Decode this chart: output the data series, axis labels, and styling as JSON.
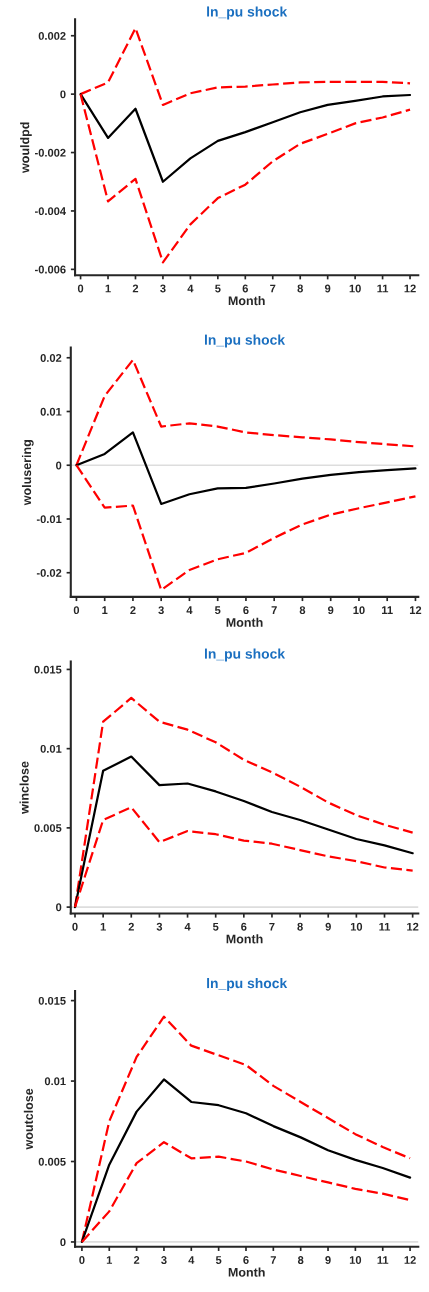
{
  "chart_data": [
    {
      "type": "line",
      "title": "ln_pu shock",
      "xlabel": "Month",
      "ylabel": "wouldpd",
      "x": [
        0,
        1,
        2,
        3,
        4,
        5,
        6,
        7,
        8,
        9,
        10,
        11,
        12
      ],
      "series": [
        {
          "color": "#ff0000",
          "line_style": "dashed",
          "values": [
            0,
            0.0004,
            0.00226,
            -0.00037,
            3e-05,
            0.00023,
            0.00026,
            0.00033,
            0.0004,
            0.00042,
            0.00042,
            0.00042,
            0.00037
          ]
        },
        {
          "color": "#000000",
          "line_style": "solid",
          "values": [
            0,
            -0.0015,
            -0.0005,
            -0.003,
            -0.0022,
            -0.0016,
            -0.0013,
            -0.00096,
            -0.00062,
            -0.00037,
            -0.00023,
            -8e-05,
            -3e-05
          ]
        },
        {
          "color": "#ff0000",
          "line_style": "dashed",
          "values": [
            0,
            -0.00367,
            -0.0029,
            -0.00576,
            -0.00446,
            -0.00356,
            -0.0031,
            -0.0023,
            -0.0017,
            -0.00136,
            -0.001,
            -0.0008,
            -0.00053
          ]
        }
      ],
      "xlim": [
        -0.2,
        12.3
      ],
      "xticks": [
        0,
        1,
        2,
        3,
        4,
        5,
        6,
        7,
        8,
        9,
        10,
        11,
        12
      ],
      "ylim": [
        -0.0062,
        0.00256
      ],
      "yticks": [
        -0.006,
        -0.004,
        -0.002,
        0,
        0.002
      ],
      "grid": false
    },
    {
      "type": "line",
      "title": "ln_pu shock",
      "xlabel": "Month",
      "ylabel": "wolusering",
      "x": [
        0,
        1,
        2,
        3,
        4,
        5,
        6,
        7,
        8,
        9,
        10,
        11,
        12
      ],
      "series": [
        {
          "color": "#ff0000",
          "line_style": "dashed",
          "values": [
            0,
            0.0129,
            0.0196,
            0.0072,
            0.0078,
            0.0072,
            0.0061,
            0.0056,
            0.0052,
            0.0048,
            0.0043,
            0.0039,
            0.0035
          ]
        },
        {
          "color": "#000000",
          "line_style": "solid",
          "values": [
            0,
            0.0021,
            0.0061,
            -0.0072,
            -0.0054,
            -0.0043,
            -0.0042,
            -0.0034,
            -0.0025,
            -0.0018,
            -0.0013,
            -0.0009,
            -0.0006
          ]
        },
        {
          "color": "#ff0000",
          "line_style": "dashed",
          "values": [
            0,
            -0.0079,
            -0.0075,
            -0.0232,
            -0.0195,
            -0.0175,
            -0.0163,
            -0.0135,
            -0.011,
            -0.0092,
            -0.008,
            -0.0069,
            -0.0058
          ]
        }
      ],
      "xlim": [
        -0.2,
        12.1
      ],
      "xticks": [
        0,
        1,
        2,
        3,
        4,
        5,
        6,
        7,
        8,
        9,
        10,
        11,
        12
      ],
      "ylim": [
        -0.0245,
        0.0219
      ],
      "yticks": [
        -0.02,
        -0.01,
        0,
        0.01,
        0.02
      ],
      "grid": false,
      "ref_lines": [
        {
          "axis": "y",
          "value": 0,
          "color": "#dddddd"
        }
      ]
    },
    {
      "type": "line",
      "title": "ln_pu shock",
      "xlabel": "Month",
      "ylabel": "winclose",
      "x": [
        0,
        1,
        2,
        3,
        4,
        5,
        6,
        7,
        8,
        9,
        10,
        11,
        12
      ],
      "series": [
        {
          "color": "#ff0000",
          "line_style": "dashed",
          "values": [
            0,
            0.0117,
            0.0132,
            0.0117,
            0.0112,
            0.0104,
            0.0093,
            0.0085,
            0.0076,
            0.0066,
            0.0058,
            0.0052,
            0.0047
          ]
        },
        {
          "color": "#000000",
          "line_style": "solid",
          "values": [
            0,
            0.0086,
            0.0095,
            0.0077,
            0.0078,
            0.0073,
            0.0067,
            0.006,
            0.0055,
            0.0049,
            0.0043,
            0.0039,
            0.0034
          ]
        },
        {
          "color": "#ff0000",
          "line_style": "dashed",
          "values": [
            0,
            0.0055,
            0.0063,
            0.0041,
            0.0048,
            0.0046,
            0.0042,
            0.004,
            0.0036,
            0.0032,
            0.0029,
            0.0025,
            0.0023
          ]
        }
      ],
      "xlim": [
        -0.15,
        12.2
      ],
      "xticks": [
        0,
        1,
        2,
        3,
        4,
        5,
        6,
        7,
        8,
        9,
        10,
        11,
        12
      ],
      "ylim": [
        -0.0004,
        0.0155
      ],
      "yticks": [
        0,
        0.005,
        0.01,
        0.015
      ],
      "grid": false,
      "ref_lines": [
        {
          "axis": "y",
          "value": 0,
          "color": "#dddddd"
        }
      ]
    },
    {
      "type": "line",
      "title": "ln_pu shock",
      "xlabel": "Month",
      "ylabel": "woutclose",
      "x": [
        0,
        1,
        2,
        3,
        4,
        5,
        6,
        7,
        8,
        9,
        10,
        11,
        12
      ],
      "series": [
        {
          "color": "#ff0000",
          "line_style": "dashed",
          "values": [
            0,
            0.0075,
            0.0115,
            0.014,
            0.0122,
            0.0116,
            0.011,
            0.0097,
            0.0087,
            0.0077,
            0.0067,
            0.0059,
            0.0052
          ]
        },
        {
          "color": "#000000",
          "line_style": "solid",
          "values": [
            0,
            0.0048,
            0.0081,
            0.0101,
            0.0087,
            0.0085,
            0.008,
            0.0072,
            0.0065,
            0.0057,
            0.0051,
            0.0046,
            0.004
          ]
        },
        {
          "color": "#ff0000",
          "line_style": "dashed",
          "values": [
            0,
            0.0019,
            0.0049,
            0.0062,
            0.0052,
            0.0053,
            0.005,
            0.0045,
            0.0041,
            0.0037,
            0.0033,
            0.003,
            0.0026
          ]
        }
      ],
      "xlim": [
        -0.25,
        12.3
      ],
      "xticks": [
        0,
        1,
        2,
        3,
        4,
        5,
        6,
        7,
        8,
        9,
        10,
        11,
        12
      ],
      "ylim": [
        -0.0003,
        0.0156
      ],
      "yticks": [
        0,
        0.005,
        0.01,
        0.015
      ],
      "grid": false,
      "ref_lines": [
        {
          "axis": "y",
          "value": 0,
          "color": "#dddddd"
        }
      ]
    }
  ]
}
